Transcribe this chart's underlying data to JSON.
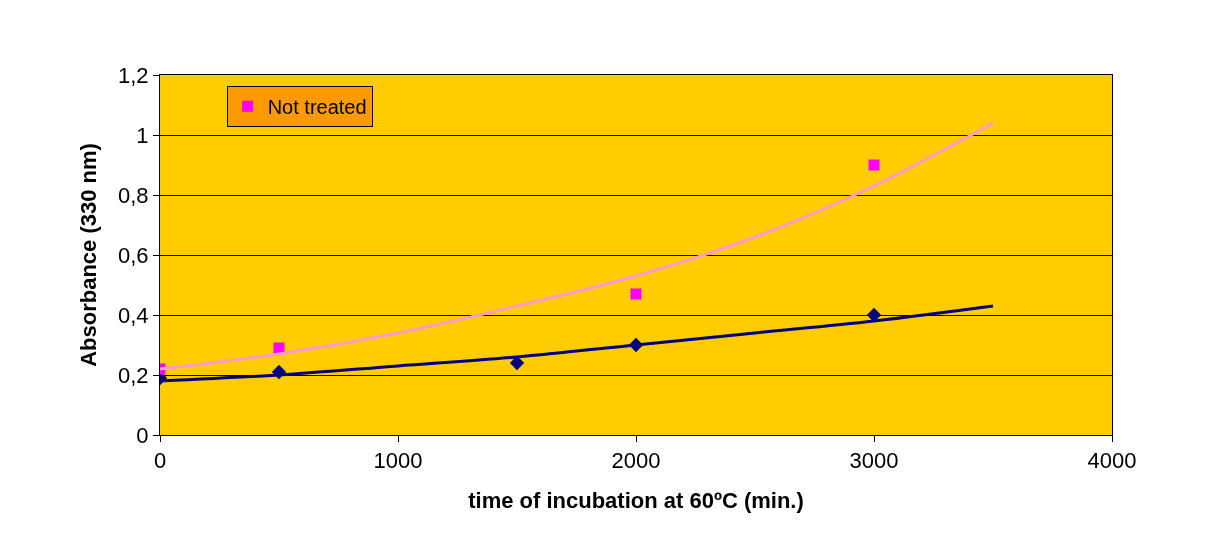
{
  "chart_data": {
    "type": "scatter",
    "xlabel": "time of incubation at 60ºC (min.)",
    "ylabel": "Absorbance (330 nm)",
    "x": [
      0,
      500,
      1500,
      2000,
      3000
    ],
    "series": [
      {
        "color": "#000080",
        "marker": "diamond",
        "values": [
          0.19,
          0.21,
          0.24,
          0.3,
          0.4
        ]
      },
      {
        "name": "Not treated",
        "color": "#ff00ff",
        "marker": "square",
        "x": [
          0,
          500,
          2000,
          3000
        ],
        "values": [
          0.22,
          0.29,
          0.47,
          0.9
        ]
      },
      {
        "type": "line",
        "color": "#000080",
        "x": [
          0,
          500,
          1000,
          1500,
          2000,
          2500,
          3000,
          3500
        ],
        "values": [
          0.18,
          0.2,
          0.23,
          0.26,
          0.3,
          0.34,
          0.38,
          0.43
        ]
      },
      {
        "type": "line",
        "color": "#ff99cc",
        "x": [
          0,
          500,
          1000,
          1500,
          2000,
          2500,
          3000,
          3500
        ],
        "values": [
          0.22,
          0.27,
          0.34,
          0.43,
          0.53,
          0.66,
          0.83,
          1.04
        ]
      }
    ],
    "xlim": [
      0,
      4000
    ],
    "xticks": [
      0,
      1000,
      2000,
      3000,
      4000
    ],
    "ylim": [
      0,
      1.2
    ],
    "yticks": [
      0,
      {
        "value": 0.2,
        "label": "0,2"
      },
      {
        "value": 0.4,
        "label": "0,4"
      },
      {
        "value": 0.6,
        "label": "0,6"
      },
      {
        "value": 0.8,
        "label": "0,8"
      },
      1,
      {
        "value": 1.2,
        "label": "1,2"
      }
    ],
    "grid": "y",
    "legend": "top left"
  }
}
